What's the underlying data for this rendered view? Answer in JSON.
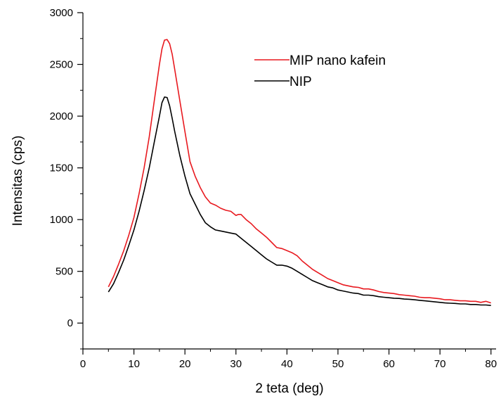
{
  "chart_data": {
    "type": "line",
    "title": "",
    "xlabel": "2 teta (deg)",
    "ylabel": "Intensitas (cps)",
    "xlim": [
      0,
      81
    ],
    "ylim": [
      -250,
      3000
    ],
    "xticks": [
      0,
      10,
      20,
      30,
      40,
      50,
      60,
      70,
      80
    ],
    "yticks": [
      0,
      500,
      1000,
      1500,
      2000,
      2500,
      3000
    ],
    "xtick_labels": [
      "0",
      "10",
      "20",
      "30",
      "40",
      "50",
      "60",
      "70",
      "80"
    ],
    "ytick_labels": [
      "0",
      "500",
      "1000",
      "1500",
      "2000",
      "2500",
      "3000"
    ],
    "grid": false,
    "legend_position": "top-right",
    "series": [
      {
        "name": "MIP nano kafein",
        "color": "#e8191f",
        "points": [
          [
            5,
            350
          ],
          [
            6,
            450
          ],
          [
            7,
            570
          ],
          [
            8,
            700
          ],
          [
            9,
            850
          ],
          [
            10,
            1020
          ],
          [
            11,
            1250
          ],
          [
            12,
            1500
          ],
          [
            13,
            1800
          ],
          [
            14,
            2150
          ],
          [
            15,
            2500
          ],
          [
            15.5,
            2650
          ],
          [
            16,
            2735
          ],
          [
            16.5,
            2740
          ],
          [
            17,
            2700
          ],
          [
            17.5,
            2600
          ],
          [
            18,
            2450
          ],
          [
            19,
            2150
          ],
          [
            20,
            1850
          ],
          [
            21,
            1560
          ],
          [
            22,
            1420
          ],
          [
            23,
            1310
          ],
          [
            24,
            1220
          ],
          [
            25,
            1160
          ],
          [
            26,
            1140
          ],
          [
            27,
            1110
          ],
          [
            28,
            1090
          ],
          [
            29,
            1080
          ],
          [
            30,
            1040
          ],
          [
            30.5,
            1050
          ],
          [
            31,
            1050
          ],
          [
            32,
            1000
          ],
          [
            33,
            960
          ],
          [
            34,
            910
          ],
          [
            35,
            870
          ],
          [
            36,
            830
          ],
          [
            37,
            780
          ],
          [
            38,
            730
          ],
          [
            39,
            720
          ],
          [
            40,
            700
          ],
          [
            41,
            680
          ],
          [
            42,
            650
          ],
          [
            43,
            600
          ],
          [
            44,
            560
          ],
          [
            45,
            520
          ],
          [
            46,
            490
          ],
          [
            47,
            460
          ],
          [
            48,
            430
          ],
          [
            49,
            410
          ],
          [
            50,
            390
          ],
          [
            51,
            370
          ],
          [
            52,
            360
          ],
          [
            53,
            350
          ],
          [
            54,
            345
          ],
          [
            55,
            330
          ],
          [
            56,
            330
          ],
          [
            57,
            320
          ],
          [
            58,
            305
          ],
          [
            59,
            295
          ],
          [
            60,
            290
          ],
          [
            61,
            285
          ],
          [
            62,
            275
          ],
          [
            63,
            270
          ],
          [
            64,
            265
          ],
          [
            65,
            260
          ],
          [
            66,
            250
          ],
          [
            67,
            245
          ],
          [
            68,
            245
          ],
          [
            69,
            240
          ],
          [
            70,
            235
          ],
          [
            71,
            225
          ],
          [
            72,
            225
          ],
          [
            73,
            220
          ],
          [
            74,
            215
          ],
          [
            75,
            215
          ],
          [
            76,
            210
          ],
          [
            77,
            210
          ],
          [
            78,
            200
          ],
          [
            79,
            210
          ],
          [
            80,
            195
          ]
        ]
      },
      {
        "name": "NIP",
        "color": "#000000",
        "points": [
          [
            5,
            300
          ],
          [
            6,
            380
          ],
          [
            7,
            490
          ],
          [
            8,
            610
          ],
          [
            9,
            750
          ],
          [
            10,
            900
          ],
          [
            11,
            1080
          ],
          [
            12,
            1280
          ],
          [
            13,
            1500
          ],
          [
            14,
            1750
          ],
          [
            15,
            2000
          ],
          [
            15.5,
            2130
          ],
          [
            16,
            2185
          ],
          [
            16.5,
            2180
          ],
          [
            17,
            2100
          ],
          [
            17.5,
            1980
          ],
          [
            18,
            1850
          ],
          [
            19,
            1620
          ],
          [
            20,
            1420
          ],
          [
            21,
            1250
          ],
          [
            22,
            1150
          ],
          [
            23,
            1050
          ],
          [
            24,
            970
          ],
          [
            25,
            930
          ],
          [
            26,
            900
          ],
          [
            27,
            890
          ],
          [
            28,
            880
          ],
          [
            29,
            870
          ],
          [
            30,
            860
          ],
          [
            31,
            820
          ],
          [
            32,
            780
          ],
          [
            33,
            740
          ],
          [
            34,
            700
          ],
          [
            35,
            660
          ],
          [
            36,
            620
          ],
          [
            37,
            590
          ],
          [
            38,
            560
          ],
          [
            39,
            560
          ],
          [
            40,
            550
          ],
          [
            41,
            530
          ],
          [
            42,
            500
          ],
          [
            43,
            470
          ],
          [
            44,
            440
          ],
          [
            45,
            410
          ],
          [
            46,
            390
          ],
          [
            47,
            370
          ],
          [
            48,
            350
          ],
          [
            49,
            340
          ],
          [
            50,
            320
          ],
          [
            51,
            310
          ],
          [
            52,
            300
          ],
          [
            53,
            290
          ],
          [
            54,
            285
          ],
          [
            55,
            270
          ],
          [
            56,
            270
          ],
          [
            57,
            265
          ],
          [
            58,
            255
          ],
          [
            59,
            250
          ],
          [
            60,
            245
          ],
          [
            61,
            240
          ],
          [
            62,
            238
          ],
          [
            63,
            232
          ],
          [
            64,
            230
          ],
          [
            65,
            225
          ],
          [
            66,
            220
          ],
          [
            67,
            215
          ],
          [
            68,
            210
          ],
          [
            69,
            205
          ],
          [
            70,
            200
          ],
          [
            71,
            195
          ],
          [
            72,
            192
          ],
          [
            73,
            190
          ],
          [
            74,
            185
          ],
          [
            75,
            185
          ],
          [
            76,
            180
          ],
          [
            77,
            180
          ],
          [
            78,
            175
          ],
          [
            79,
            175
          ],
          [
            80,
            170
          ]
        ]
      }
    ]
  }
}
